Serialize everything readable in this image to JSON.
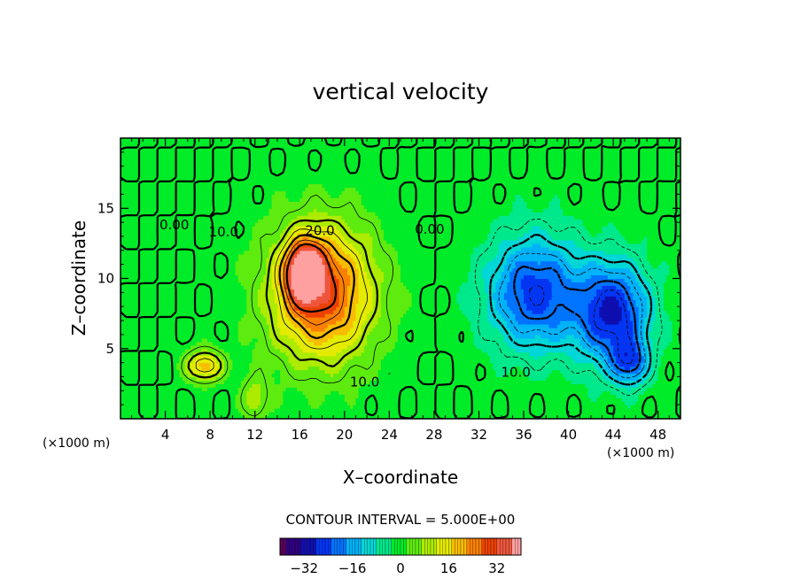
{
  "chart_data": {
    "type": "heatmap",
    "title": "vertical velocity",
    "xlabel": "X–coordinate",
    "ylabel": "Z–coordinate",
    "x_unit": "(×1000 m)",
    "y_unit": "(×1000 m)",
    "xlim": [
      0,
      50
    ],
    "ylim": [
      0,
      20
    ],
    "x_ticks": [
      4,
      8,
      12,
      16,
      20,
      24,
      28,
      32,
      36,
      40,
      44,
      48
    ],
    "y_ticks": [
      5,
      10,
      15
    ],
    "contour_interval": "CONTOUR INTERVAL = 5.000E+00",
    "colorbar": {
      "range": [
        -40,
        40
      ],
      "tick_values": [
        -32,
        -16,
        0,
        16,
        32
      ],
      "tick_labels": [
        "−32",
        "−16",
        "0",
        "16",
        "32"
      ]
    },
    "field_features": [
      {
        "kind": "updraft",
        "x": 18,
        "z": 9,
        "peak": 30
      },
      {
        "kind": "updraft",
        "x": 16.5,
        "z": 10.5,
        "peak": 36
      },
      {
        "kind": "updraft",
        "x": 7.5,
        "z": 3.8,
        "peak": 20
      },
      {
        "kind": "updraft",
        "x": 12,
        "z": 1.5,
        "peak": 10
      },
      {
        "kind": "downdraft",
        "x": 37,
        "z": 9,
        "peak": -25
      },
      {
        "kind": "downdraft",
        "x": 44,
        "z": 7.5,
        "peak": -28
      },
      {
        "kind": "downdraft",
        "x": 45.5,
        "z": 4,
        "peak": -18
      }
    ],
    "contour_labels": [
      {
        "text": "0.00",
        "x": 4.8,
        "z": 13.5
      },
      {
        "text": "10.0",
        "x": 9.2,
        "z": 13.0
      },
      {
        "text": "20.0",
        "x": 17.8,
        "z": 13.1
      },
      {
        "text": "10.0",
        "x": 21.8,
        "z": 2.3
      },
      {
        "text": "0.00",
        "x": 27.6,
        "z": 13.2
      },
      {
        "text": "10.0",
        "x": 35.3,
        "z": 3.0
      }
    ]
  }
}
